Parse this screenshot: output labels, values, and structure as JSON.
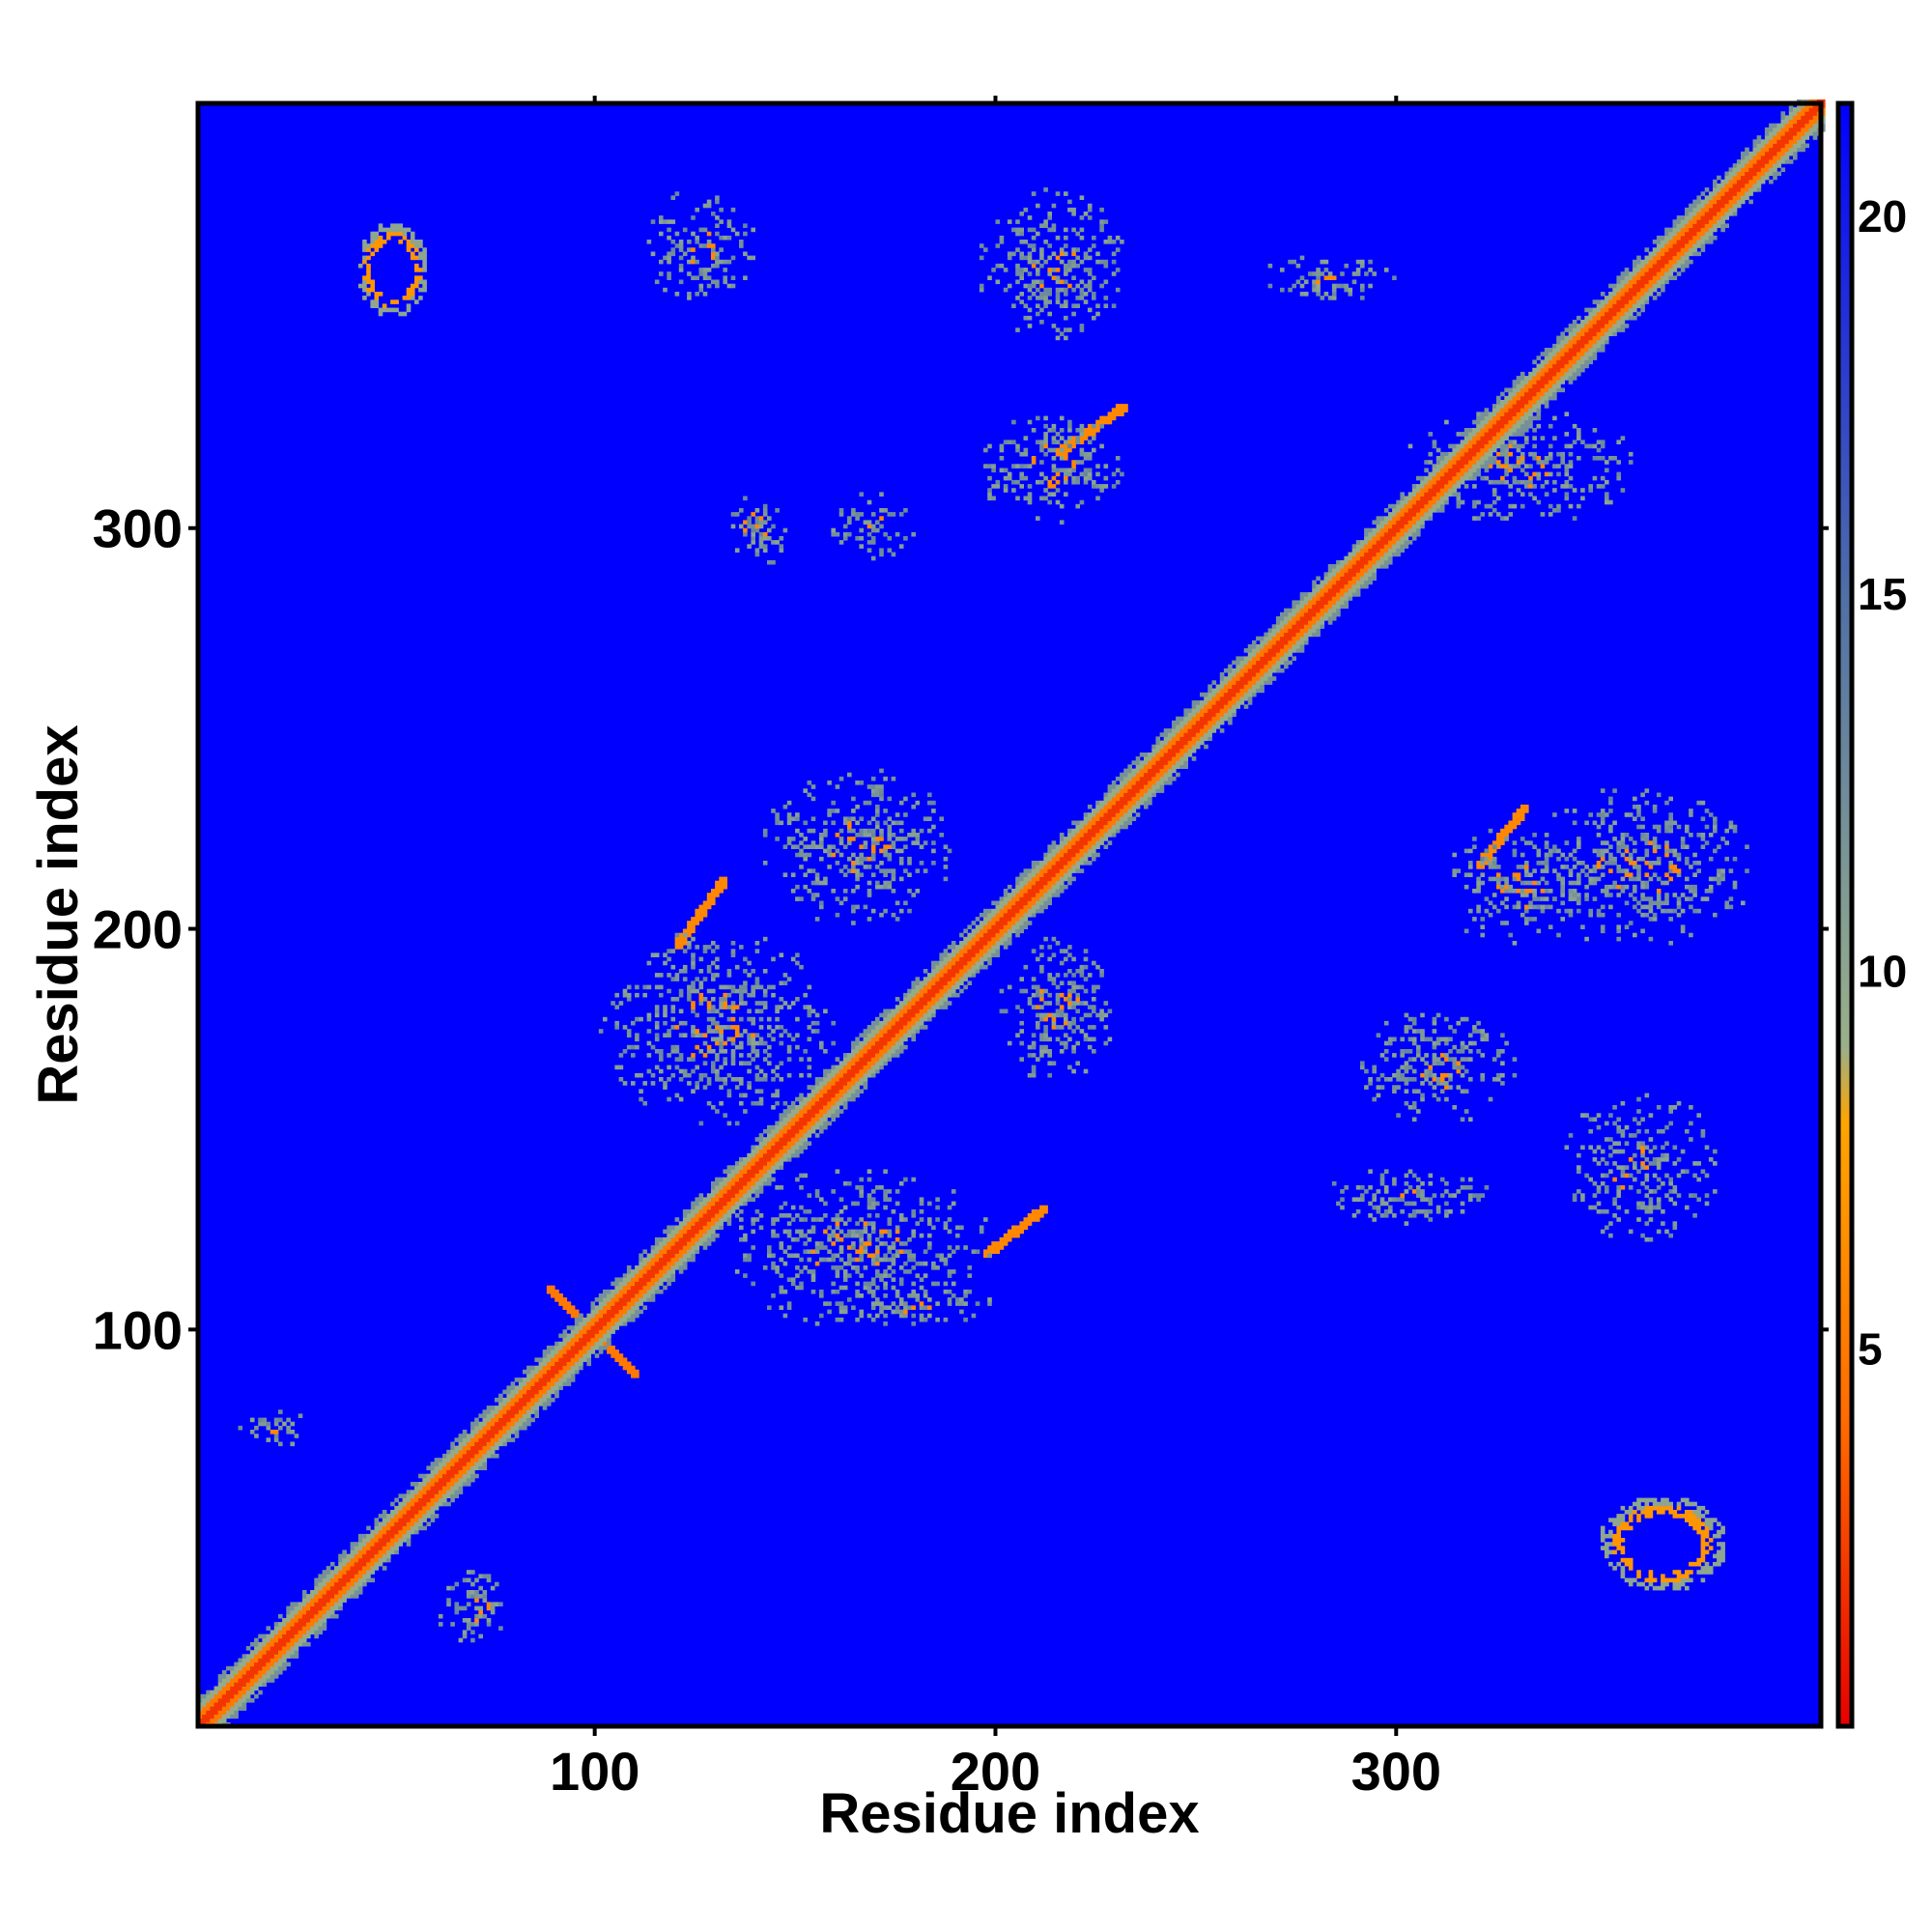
{
  "chart_data": {
    "type": "heatmap",
    "title": "",
    "xlabel": "Residue index",
    "ylabel": "Residue index",
    "xlim": [
      1,
      406
    ],
    "ylim": [
      1,
      406
    ],
    "x_ticks": [
      100,
      200,
      300
    ],
    "y_ticks": [
      100,
      200,
      300
    ],
    "colorbar": {
      "range": [
        0,
        21.5
      ],
      "ticks": [
        5,
        10,
        15,
        20
      ],
      "colors": [
        "#e60000",
        "#ff6a00",
        "#ffa500",
        "#9ab08a",
        "#4f6fa6",
        "#0000ff"
      ],
      "color_stops": [
        0,
        4,
        8,
        9,
        15,
        21.5
      ]
    },
    "background_color": "#0000ff",
    "features": [
      {
        "x": [
          40,
          58
        ],
        "y": [
          352,
          376
        ],
        "shape": "ring",
        "value": 9
      },
      {
        "x": [
          350,
          382
        ],
        "y": [
          34,
          58
        ],
        "shape": "ring",
        "value": 9
      },
      {
        "x": [
          88,
          110
        ],
        "y": [
          88,
          110
        ],
        "shape": "cross",
        "value": 6
      },
      {
        "x": [
          120,
          132
        ],
        "y": [
          195,
          212
        ],
        "shape": "band",
        "value": 6
      },
      {
        "x": [
          197,
          212
        ],
        "y": [
          118,
          130
        ],
        "shape": "band",
        "value": 6
      },
      {
        "x": [
          215,
          232
        ],
        "y": [
          318,
          330
        ],
        "shape": "band",
        "value": 6
      },
      {
        "x": [
          320,
          332
        ],
        "y": [
          215,
          230
        ],
        "shape": "band",
        "value": 6
      },
      {
        "x": [
          112,
          140
        ],
        "y": [
          355,
          385
        ],
        "shape": "patch",
        "value": 11
      },
      {
        "x": [
          195,
          232
        ],
        "y": [
          345,
          385
        ],
        "shape": "patch",
        "value": 11
      },
      {
        "x": [
          195,
          232
        ],
        "y": [
          300,
          330
        ],
        "shape": "patch",
        "value": 11
      },
      {
        "x": [
          158,
          180
        ],
        "y": [
          290,
          310
        ],
        "shape": "patch",
        "value": 11
      },
      {
        "x": [
          130,
          150
        ],
        "y": [
          290,
          310
        ],
        "shape": "patch",
        "value": 11
      },
      {
        "x": [
          265,
          300
        ],
        "y": [
          355,
          368
        ],
        "shape": "patch",
        "value": 11
      },
      {
        "x": [
          300,
          360
        ],
        "y": [
          300,
          330
        ],
        "shape": "patch",
        "value": 11
      },
      {
        "x": [
          290,
          330
        ],
        "y": [
          150,
          180
        ],
        "shape": "patch",
        "value": 11
      },
      {
        "x": [
          280,
          325
        ],
        "y": [
          125,
          140
        ],
        "shape": "patch",
        "value": 11
      },
      {
        "x": [
          340,
          380
        ],
        "y": [
          120,
          160
        ],
        "shape": "patch",
        "value": 11
      },
      {
        "x": [
          330,
          390
        ],
        "y": [
          195,
          235
        ],
        "shape": "patch",
        "value": 11
      },
      {
        "x": [
          310,
          350
        ],
        "y": [
          195,
          225
        ],
        "shape": "patch",
        "value": 11
      },
      {
        "x": [
          130,
          200
        ],
        "y": [
          100,
          140
        ],
        "shape": "patch",
        "value": 11
      },
      {
        "x": [
          100,
          160
        ],
        "y": [
          150,
          200
        ],
        "shape": "patch",
        "value": 11
      },
      {
        "x": [
          140,
          190
        ],
        "y": [
          200,
          240
        ],
        "shape": "patch",
        "value": 11
      },
      {
        "x": [
          200,
          230
        ],
        "y": [
          160,
          200
        ],
        "shape": "patch",
        "value": 11
      },
      {
        "x": [
          155,
          200
        ],
        "y": [
          100,
          110
        ],
        "shape": "patch",
        "value": 11
      },
      {
        "x": [
          10,
          30
        ],
        "y": [
          70,
          80
        ],
        "shape": "patch",
        "value": 11
      },
      {
        "x": [
          60,
          80
        ],
        "y": [
          20,
          40
        ],
        "shape": "patch",
        "value": 11
      }
    ]
  }
}
